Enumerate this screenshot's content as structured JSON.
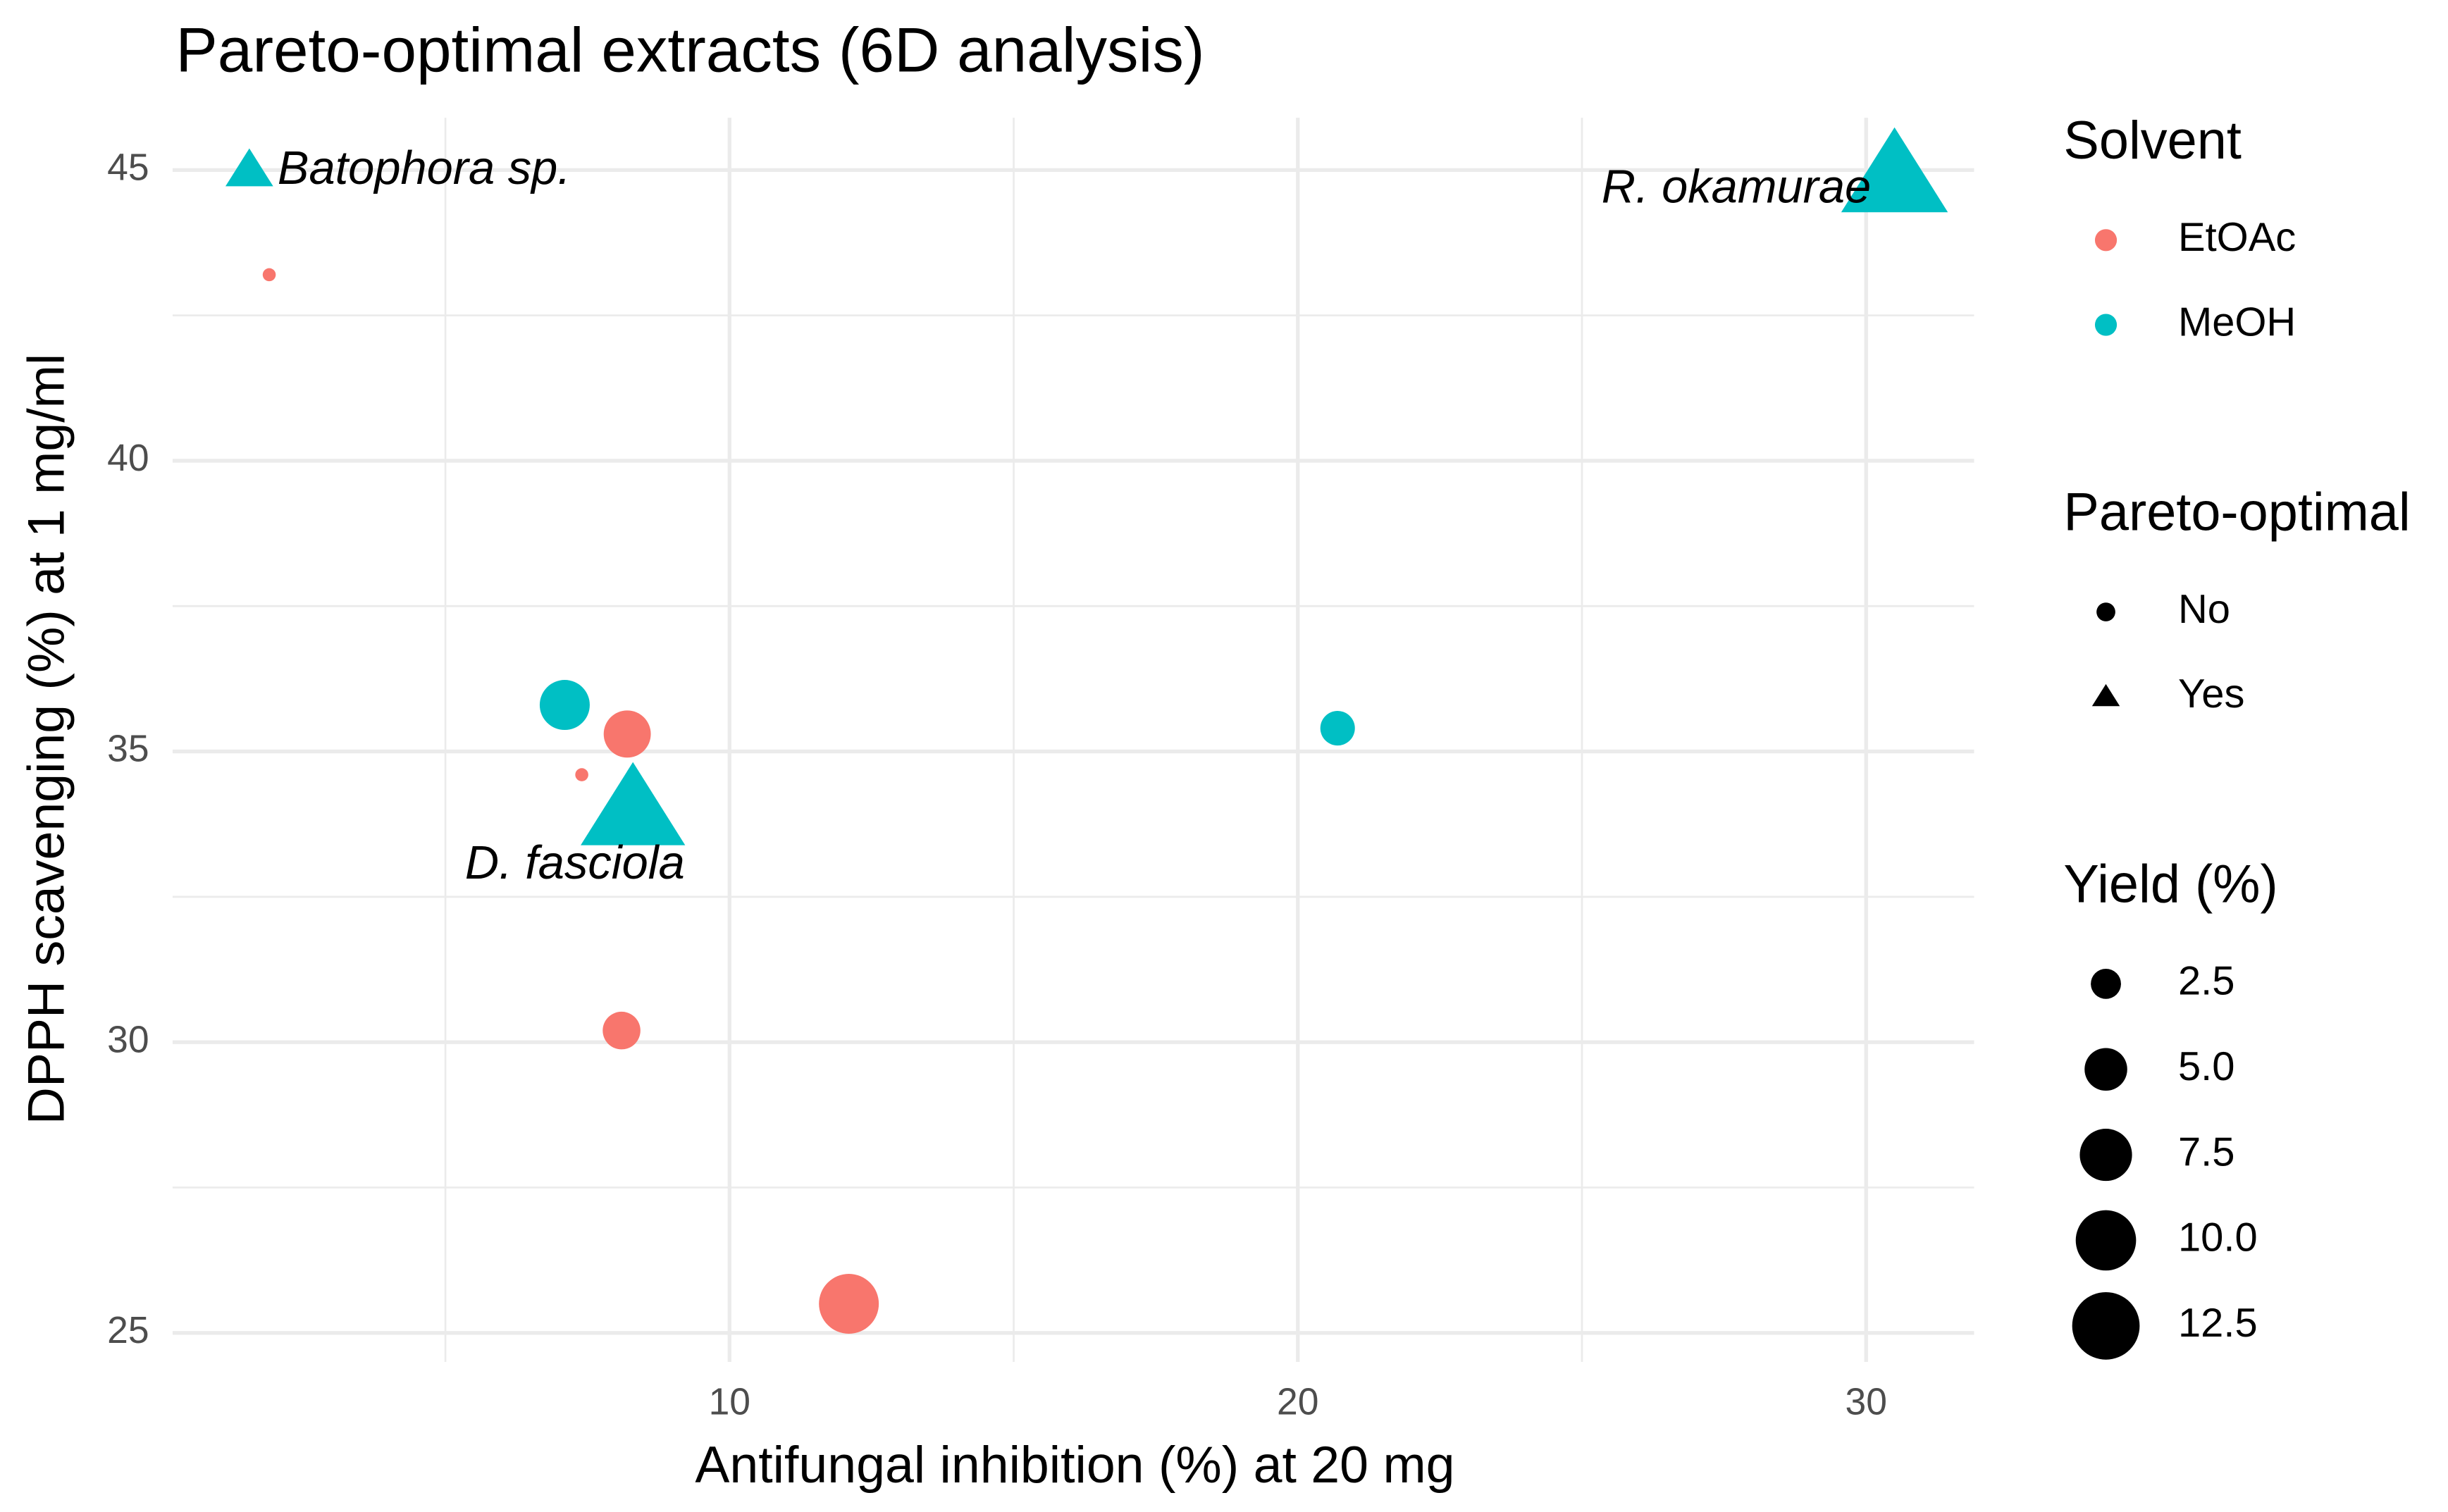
{
  "chart_data": {
    "type": "scatter",
    "title": "Pareto-optimal extracts (6D analysis)",
    "x_label": "Antifungal inhibition (%) at 20 mg",
    "y_label": "DPPH scavenging (%) at 1 mg/ml",
    "xlim": [
      0.2,
      31.9
    ],
    "ylim": [
      24.5,
      45.9
    ],
    "xticks": [
      10,
      20,
      30
    ],
    "yticks": [
      25,
      30,
      35,
      40,
      45
    ],
    "xticks_minor": [
      5,
      15,
      25
    ],
    "yticks_minor": [
      27.5,
      32.5,
      37.5,
      42.5
    ],
    "grid": true,
    "legend_title": "Solvent",
    "series": [
      {
        "name": "EtOAc",
        "color": "#F8766D",
        "x": [
          1.9,
          8.2,
          7.4,
          8.1,
          12.1
        ],
        "values": [
          43.2,
          35.3,
          34.6,
          30.2,
          25.5
        ],
        "sizes": [
          0.3,
          3.9,
          0.3,
          2.5,
          6.3
        ],
        "pareto": [
          false,
          false,
          false,
          false,
          false
        ],
        "point_labels": [
          null,
          null,
          null,
          null,
          null
        ]
      },
      {
        "name": "MeOH",
        "color": "#00BFC4",
        "x": [
          1.55,
          7.1,
          8.3,
          20.7,
          30.5
        ],
        "values": [
          45.0,
          35.8,
          34.0,
          35.4,
          44.9
        ],
        "sizes": [
          2.5,
          4.4,
          12,
          2.1,
          12.5
        ],
        "pareto": [
          true,
          false,
          true,
          false,
          true
        ],
        "point_labels": [
          "Batophora sp.",
          null,
          "D. fasciola",
          null,
          "R. okamurae"
        ]
      }
    ],
    "shape_legend": {
      "title": "Pareto-optimal",
      "labels": [
        "No",
        "Yes"
      ]
    },
    "size_legend": {
      "title": "Yield (%)",
      "values": [
        2.5,
        {
          "value": 5,
          "label": "5.0"
        },
        7.5,
        {
          "value": 10,
          "label": "10.0"
        },
        12.5
      ]
    }
  }
}
